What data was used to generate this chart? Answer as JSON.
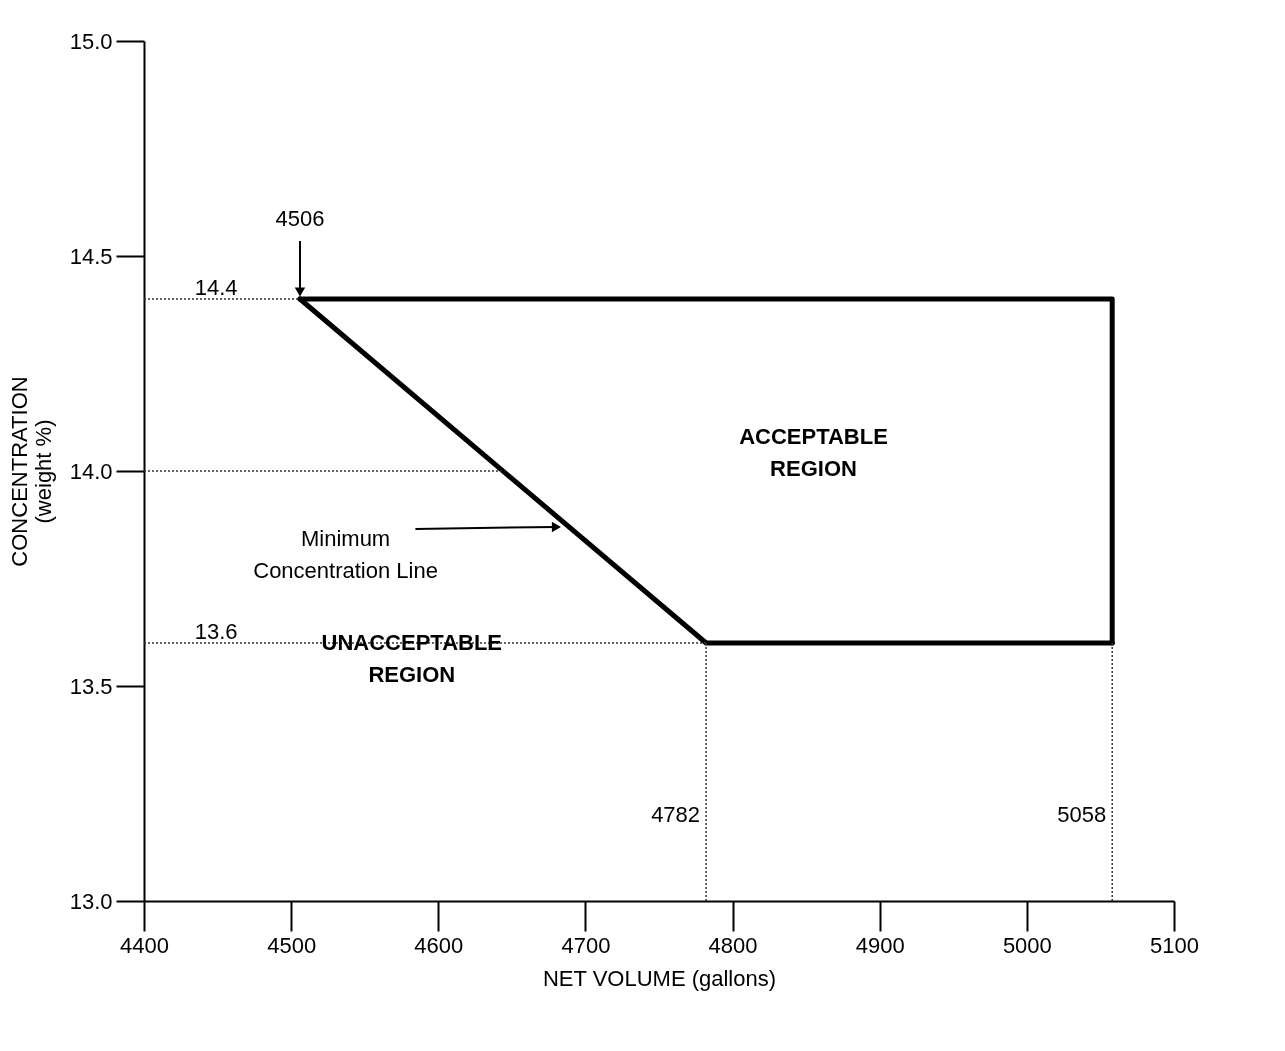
{
  "chart_data": {
    "type": "line",
    "xlabel": "NET VOLUME (gallons)",
    "ylabel": "CONCENTRATION\n(weight %)",
    "series": [
      {
        "color": "#000000",
        "x": [
          4506,
          5058,
          5058
        ],
        "values": [
          14.4,
          14.4,
          13.6
        ]
      },
      {
        "color": "#000000",
        "x": [
          4506,
          4782,
          5058
        ],
        "values": [
          14.4,
          13.6,
          13.6
        ]
      }
    ],
    "xlim": [
      4400,
      5100
    ],
    "xticks": [
      4400,
      4500,
      4600,
      4700,
      4800,
      4900,
      5000,
      5100
    ],
    "ylim": [
      13.0,
      15.0
    ],
    "yticks": [
      {
        "value": 13.0,
        "label": "13.0"
      },
      {
        "value": 13.5,
        "label": "13.5"
      },
      {
        "value": 14.0,
        "label": "14.0"
      },
      {
        "value": 14.5,
        "label": "14.5"
      },
      {
        "value": 15.0,
        "label": "15.0"
      }
    ],
    "ref_lines": [
      {
        "axis": "y",
        "value": 14.4,
        "label": "14.4",
        "line_style": "dotted",
        "color": "#333333"
      },
      {
        "axis": "y",
        "value": 14.0,
        "label": null,
        "line_style": "dotted",
        "color": "#333333"
      },
      {
        "axis": "y",
        "value": 13.6,
        "label": "13.6",
        "line_style": "dotted",
        "color": "#333333"
      },
      {
        "axis": "x",
        "value": 4782,
        "label": "4782",
        "line_style": "dotted",
        "color": "#333333"
      },
      {
        "axis": "x",
        "value": 5058,
        "label": "5058",
        "line_style": "dotted",
        "color": "#333333"
      }
    ],
    "annotations": [
      {
        "text": "4506",
        "x": 4506,
        "y": 14.4
      },
      {
        "text": "Minimum\nConcentration Line",
        "x": 4683,
        "y": 13.87
      },
      "ACCEPTABLE\nREGION",
      "UNACCEPTABLE\nREGION"
    ],
    "grid": false
  }
}
